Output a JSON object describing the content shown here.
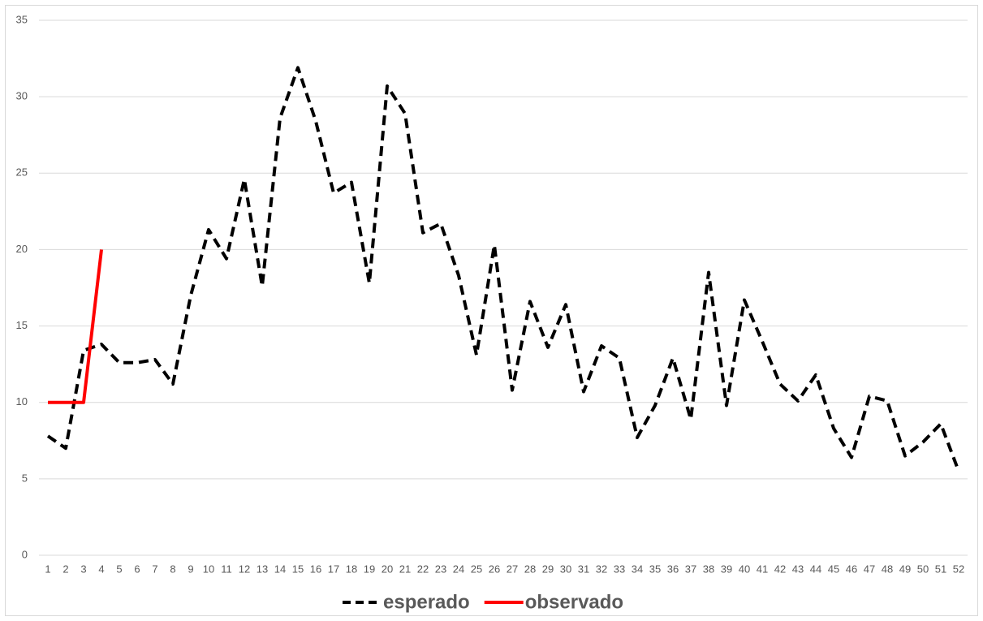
{
  "chart_data": {
    "type": "line",
    "categories": [
      "1",
      "2",
      "3",
      "4",
      "5",
      "6",
      "7",
      "8",
      "9",
      "10",
      "11",
      "12",
      "13",
      "14",
      "15",
      "16",
      "17",
      "18",
      "19",
      "20",
      "21",
      "22",
      "23",
      "24",
      "25",
      "26",
      "27",
      "28",
      "29",
      "30",
      "31",
      "32",
      "33",
      "34",
      "35",
      "36",
      "37",
      "38",
      "39",
      "40",
      "41",
      "42",
      "43",
      "44",
      "45",
      "46",
      "47",
      "48",
      "49",
      "50",
      "51",
      "52"
    ],
    "series": [
      {
        "name": "esperado",
        "color": "#000000",
        "line_style": "dashed",
        "values": [
          7.8,
          7.0,
          13.4,
          13.8,
          12.6,
          12.6,
          12.8,
          11.2,
          17.0,
          21.3,
          19.4,
          24.6,
          17.6,
          28.6,
          31.9,
          28.4,
          23.7,
          24.4,
          17.8,
          30.7,
          28.9,
          21.1,
          21.7,
          18.3,
          13.1,
          20.3,
          10.8,
          16.6,
          13.6,
          16.4,
          10.7,
          13.7,
          12.9,
          7.7,
          9.8,
          12.9,
          8.9,
          18.5,
          9.8,
          16.7,
          14.0,
          11.2,
          10.1,
          11.8,
          8.3,
          6.4,
          10.4,
          10.1,
          6.5,
          7.4,
          8.6,
          5.5
        ]
      },
      {
        "name": "observado",
        "color": "#ff0000",
        "line_style": "solid",
        "values": [
          10,
          10,
          10,
          20,
          null,
          null,
          null,
          null,
          null,
          null,
          null,
          null,
          null,
          null,
          null,
          null,
          null,
          null,
          null,
          null,
          null,
          null,
          null,
          null,
          null,
          null,
          null,
          null,
          null,
          null,
          null,
          null,
          null,
          null,
          null,
          null,
          null,
          null,
          null,
          null,
          null,
          null,
          null,
          null,
          null,
          null,
          null,
          null,
          null,
          null,
          null,
          null
        ]
      }
    ],
    "ylim": [
      0,
      35
    ],
    "yticks": [
      0,
      5,
      10,
      15,
      20,
      25,
      30,
      35
    ],
    "grid": true,
    "legend": "bottom"
  }
}
